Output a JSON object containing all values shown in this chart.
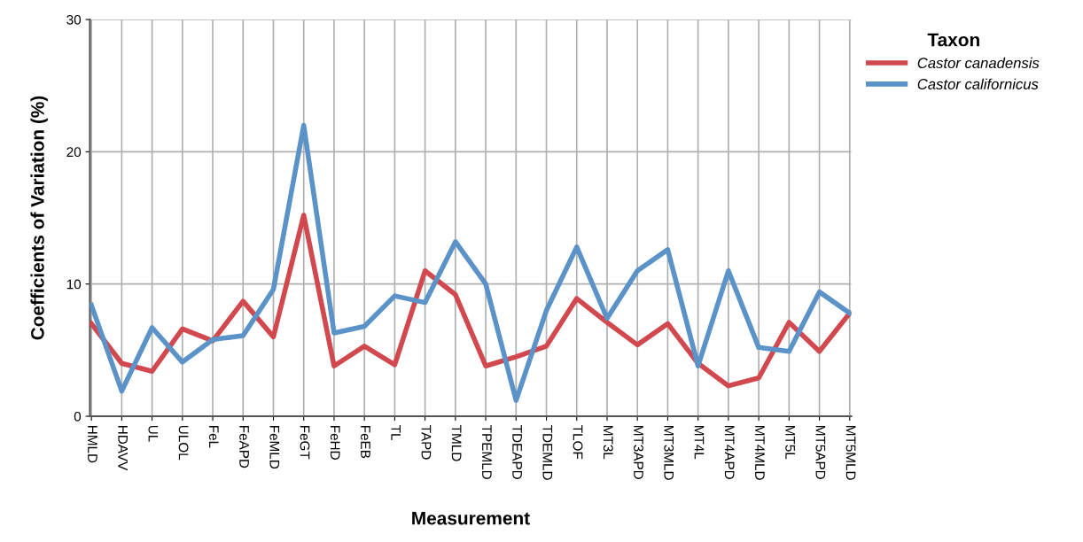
{
  "chart_data": {
    "type": "line",
    "xlabel": "Measurement",
    "ylabel": "Coefficients of Variation (%)",
    "legend_title": "Taxon",
    "categories": [
      "HMLD",
      "HDAVV",
      "UL",
      "ULOL",
      "FeL",
      "FeAPD",
      "FeMLD",
      "FeGT",
      "FeHD",
      "FeEB",
      "TL",
      "TAPD",
      "TMLD",
      "TPEMLD",
      "TDEAPD",
      "TDEMLD",
      "TLOF",
      "MT3L",
      "MT3APD",
      "MT3MLD",
      "MT4L",
      "MT4APD",
      "MT4MLD",
      "MT5L",
      "MT5APD",
      "MT5MLD"
    ],
    "series": [
      {
        "name": "Castor canadensis",
        "color": "#d1494e",
        "values": [
          7.0,
          4.0,
          3.4,
          6.6,
          5.7,
          8.7,
          6.0,
          15.2,
          3.8,
          5.3,
          3.9,
          11.0,
          9.2,
          3.8,
          4.5,
          5.3,
          8.9,
          7.1,
          5.4,
          7.0,
          4.0,
          2.3,
          2.9,
          7.1,
          4.9,
          7.8
        ]
      },
      {
        "name": "Castor californicus",
        "color": "#5b93c9",
        "values": [
          8.4,
          1.9,
          6.7,
          4.1,
          5.8,
          6.1,
          9.6,
          22.0,
          6.3,
          6.8,
          9.1,
          8.6,
          13.2,
          10.0,
          1.2,
          8.0,
          12.8,
          7.4,
          11.0,
          12.6,
          3.8,
          11.0,
          5.2,
          4.9,
          9.4,
          7.8
        ]
      }
    ],
    "ylim": [
      0,
      30
    ],
    "yticks": [
      0,
      10,
      20,
      30
    ],
    "grid": true,
    "legend": "top right",
    "marker": "none",
    "line_style": "solid"
  }
}
